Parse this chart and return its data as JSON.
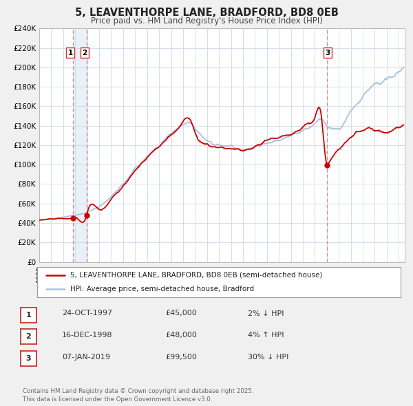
{
  "title": "5, LEAVENTHORPE LANE, BRADFORD, BD8 0EB",
  "subtitle": "Price paid vs. HM Land Registry's House Price Index (HPI)",
  "background_color": "#f0f0f0",
  "plot_bg_color": "#ffffff",
  "ylim": [
    0,
    240000
  ],
  "yticks": [
    0,
    20000,
    40000,
    60000,
    80000,
    100000,
    120000,
    140000,
    160000,
    180000,
    200000,
    220000,
    240000
  ],
  "ytick_labels": [
    "£0",
    "£20K",
    "£40K",
    "£60K",
    "£80K",
    "£100K",
    "£120K",
    "£140K",
    "£160K",
    "£180K",
    "£200K",
    "£220K",
    "£240K"
  ],
  "xlim_start": 1995.0,
  "xlim_end": 2025.5,
  "xticks": [
    1995,
    1996,
    1997,
    1998,
    1999,
    2000,
    2001,
    2002,
    2003,
    2004,
    2005,
    2006,
    2007,
    2008,
    2009,
    2010,
    2011,
    2012,
    2013,
    2014,
    2015,
    2016,
    2017,
    2018,
    2019,
    2020,
    2021,
    2022,
    2023,
    2024,
    2025
  ],
  "hpi_color": "#a8c4e0",
  "price_color": "#cc0000",
  "vline_color": "#e08080",
  "grid_color": "#d0d8e8",
  "shade_color": "#e8f0f8",
  "transactions": [
    {
      "year": 1997.81,
      "price": 45000,
      "label": "1"
    },
    {
      "year": 1998.96,
      "price": 48000,
      "label": "2"
    },
    {
      "year": 2019.03,
      "price": 99500,
      "label": "3"
    }
  ],
  "vlines": [
    1997.81,
    1998.96,
    2019.03
  ],
  "legend_line1": "5, LEAVENTHORPE LANE, BRADFORD, BD8 0EB (semi-detached house)",
  "legend_line2": "HPI: Average price, semi-detached house, Bradford",
  "table_rows": [
    {
      "num": "1",
      "date": "24-OCT-1997",
      "price": "£45,000",
      "hpi": "2% ↓ HPI"
    },
    {
      "num": "2",
      "date": "16-DEC-1998",
      "price": "£48,000",
      "hpi": "4% ↑ HPI"
    },
    {
      "num": "3",
      "date": "07-JAN-2019",
      "price": "£99,500",
      "hpi": "30% ↓ HPI"
    }
  ],
  "footer": "Contains HM Land Registry data © Crown copyright and database right 2025.\nThis data is licensed under the Open Government Licence v3.0."
}
